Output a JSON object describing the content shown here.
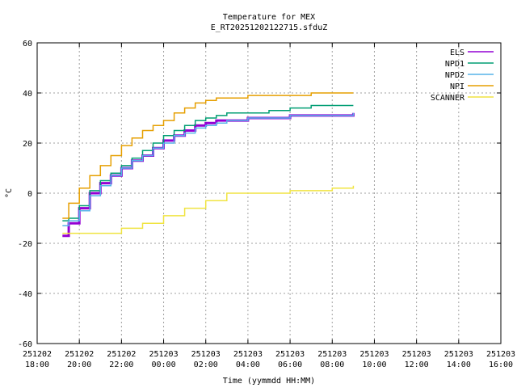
{
  "chart_data": {
    "type": "line",
    "title": "Temperature for MEX",
    "subtitle": "E_RT20251202122715.sfduZ",
    "xlabel": "Time (yymmdd HH:MM)",
    "ylabel": "°C",
    "ylim": [
      -60,
      60
    ],
    "yticks": [
      "60",
      "40",
      "20",
      "0",
      "-20",
      "-40",
      "-60"
    ],
    "xlim_hours": [
      0,
      22
    ],
    "xticks": [
      {
        "date": "251202",
        "time": "18:00"
      },
      {
        "date": "251202",
        "time": "20:00"
      },
      {
        "date": "251202",
        "time": "22:00"
      },
      {
        "date": "251203",
        "time": "00:00"
      },
      {
        "date": "251203",
        "time": "02:00"
      },
      {
        "date": "251203",
        "time": "04:00"
      },
      {
        "date": "251203",
        "time": "06:00"
      },
      {
        "date": "251203",
        "time": "08:00"
      },
      {
        "date": "251203",
        "time": "10:00"
      },
      {
        "date": "251203",
        "time": "12:00"
      },
      {
        "date": "251203",
        "time": "14:00"
      },
      {
        "date": "251203",
        "time": "16:00"
      }
    ],
    "grid": true,
    "legend_position": "top-right",
    "series": [
      {
        "name": "ELS",
        "color": "#9400d3",
        "x": [
          1.2,
          1.5,
          2.0,
          2.5,
          3.0,
          3.5,
          4.0,
          4.5,
          5.0,
          5.5,
          6.0,
          6.5,
          7.0,
          7.5,
          8.0,
          8.5,
          9.0,
          10.0,
          11.0,
          12.0,
          13.0,
          14.0,
          15.0
        ],
        "y": [
          -17,
          -12,
          -6,
          0,
          4,
          7,
          10,
          13,
          15,
          18,
          21,
          23,
          25,
          27,
          28,
          29,
          29,
          30,
          30,
          31,
          31,
          31,
          32
        ]
      },
      {
        "name": "NPD1",
        "color": "#009e73",
        "x": [
          1.2,
          1.5,
          2.0,
          2.5,
          3.0,
          3.5,
          4.0,
          4.5,
          5.0,
          5.5,
          6.0,
          6.5,
          7.0,
          7.5,
          8.0,
          8.5,
          9.0,
          10.0,
          11.0,
          12.0,
          13.0,
          14.0,
          15.0
        ],
        "y": [
          -11,
          -10,
          -5,
          1,
          5,
          8,
          11,
          14,
          17,
          20,
          23,
          25,
          27,
          29,
          30,
          31,
          32,
          32,
          33,
          34,
          35,
          35,
          35
        ]
      },
      {
        "name": "NPD2",
        "color": "#56b4e9",
        "x": [
          1.2,
          1.5,
          2.0,
          2.5,
          3.0,
          3.5,
          4.0,
          4.5,
          5.0,
          5.5,
          6.0,
          6.5,
          7.0,
          7.5,
          8.0,
          8.5,
          9.0,
          10.0,
          11.0,
          12.0,
          13.0,
          14.0,
          15.0
        ],
        "y": [
          -13,
          -11,
          -7,
          -1,
          3,
          7,
          10,
          13,
          15,
          18,
          20,
          23,
          24,
          26,
          27,
          28,
          29,
          30,
          30,
          31,
          31,
          31,
          32
        ]
      },
      {
        "name": "NPI",
        "color": "#e69f00",
        "x": [
          1.2,
          1.5,
          2.0,
          2.5,
          3.0,
          3.5,
          4.0,
          4.5,
          5.0,
          5.5,
          6.0,
          6.5,
          7.0,
          7.5,
          8.0,
          8.5,
          9.0,
          10.0,
          11.0,
          12.0,
          13.0,
          14.0,
          15.0
        ],
        "y": [
          -10,
          -4,
          2,
          7,
          11,
          15,
          19,
          22,
          25,
          27,
          29,
          32,
          34,
          36,
          37,
          38,
          38,
          39,
          39,
          39,
          40,
          40,
          40
        ]
      },
      {
        "name": "SCANNER",
        "color": "#f0e442",
        "x": [
          1.2,
          2.0,
          3.0,
          4.0,
          5.0,
          6.0,
          7.0,
          8.0,
          9.0,
          10.0,
          11.0,
          12.0,
          13.0,
          14.0,
          15.0
        ],
        "y": [
          -16,
          -16,
          -16,
          -14,
          -12,
          -9,
          -6,
          -3,
          0,
          0,
          0,
          1,
          1,
          2,
          3
        ]
      }
    ]
  }
}
